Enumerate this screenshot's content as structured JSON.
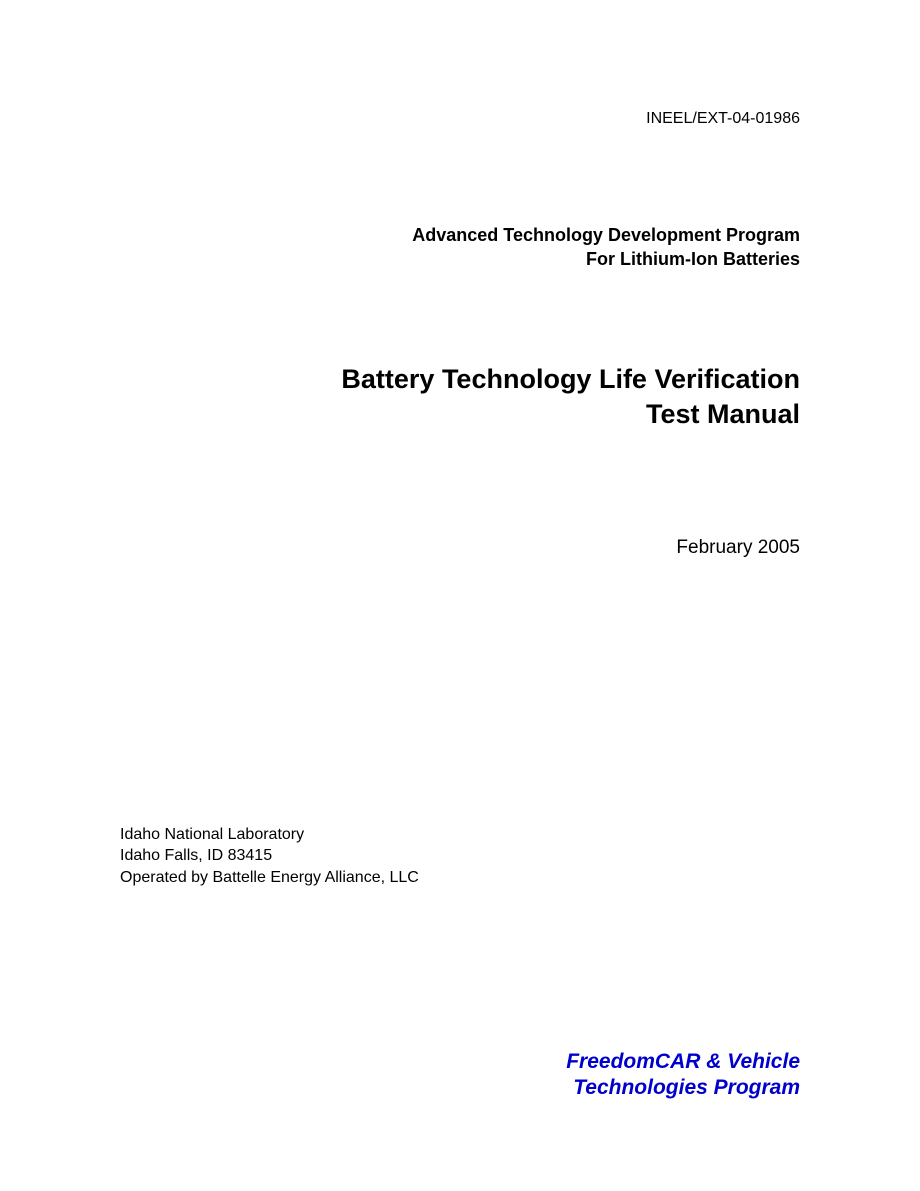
{
  "doc_id": "INEEL/EXT-04-01986",
  "program_heading_line1": "Advanced Technology Development Program",
  "program_heading_line2": "For Lithium-Ion Batteries",
  "main_title_line1": "Battery Technology Life Verification",
  "main_title_line2": "Test Manual",
  "date": "February 2005",
  "lab_line1": "Idaho National Laboratory",
  "lab_line2": "Idaho Falls, ID 83415",
  "lab_line3": "Operated by Battelle Energy Alliance, LLC",
  "sponsor_line1": "FreedomCAR & Vehicle",
  "sponsor_line2": "Technologies Program",
  "colors": {
    "text": "#000000",
    "sponsor": "#0000cc",
    "background": "#ffffff"
  }
}
